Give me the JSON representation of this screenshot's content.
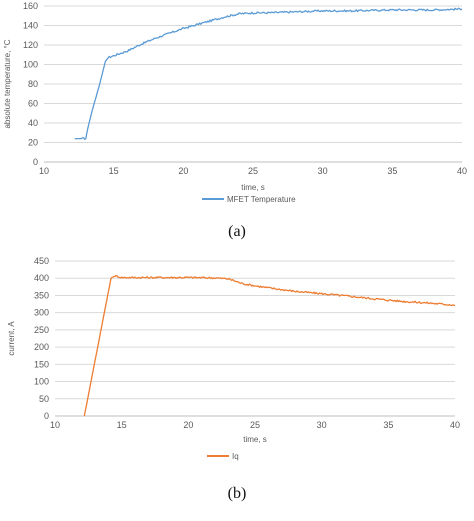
{
  "chart_data": [
    {
      "type": "line",
      "xlabel": "time, s",
      "ylabel": "absolute temperature, °C",
      "xlim": [
        10,
        40
      ],
      "ylim": [
        0,
        160
      ],
      "xticks": [
        10,
        15,
        20,
        25,
        30,
        35,
        40
      ],
      "yticks": [
        0,
        20,
        40,
        60,
        80,
        100,
        120,
        140,
        160
      ],
      "grid": "horizontal",
      "legend": "bottom",
      "caption": "(a)",
      "series": [
        {
          "name": "MFET Temperature",
          "color": "#5b9bd5",
          "x": [
            12.2,
            13.0,
            13.15,
            13.5,
            14.0,
            14.4,
            14.6,
            15.0,
            16.0,
            17.0,
            18.0,
            19.0,
            20.0,
            21.0,
            22.0,
            23.0,
            24.0,
            25.0,
            26.0,
            28.0,
            30.0,
            32.0,
            35.0,
            38.0,
            40.0
          ],
          "y": [
            24,
            24,
            35,
            55,
            80,
            103,
            107,
            109,
            114,
            121,
            127,
            132,
            137,
            141,
            145,
            149,
            152,
            153,
            153,
            154,
            155,
            155,
            156,
            156,
            157
          ]
        }
      ]
    },
    {
      "type": "line",
      "xlabel": "time, s",
      "ylabel": "current, A",
      "xlim": [
        10,
        40
      ],
      "ylim": [
        0,
        450
      ],
      "xticks": [
        10,
        15,
        20,
        25,
        30,
        35,
        40
      ],
      "yticks": [
        0,
        50,
        100,
        150,
        200,
        250,
        300,
        350,
        400,
        450
      ],
      "grid": "horizontal",
      "legend": "bottom",
      "caption": "(b)",
      "series": [
        {
          "name": "Iq",
          "color": "#ed7d31",
          "x": [
            12.2,
            14.2,
            14.5,
            15.0,
            16.0,
            18.0,
            20.0,
            22.0,
            23.0,
            23.5,
            24.0,
            25.0,
            26.0,
            27.0,
            28.0,
            30.0,
            32.0,
            34.0,
            36.0,
            38.0,
            40.0
          ],
          "y": [
            0,
            400,
            407,
            402,
            402,
            402,
            402,
            401,
            398,
            392,
            385,
            378,
            372,
            367,
            362,
            355,
            348,
            340,
            333,
            328,
            322
          ]
        }
      ]
    }
  ]
}
